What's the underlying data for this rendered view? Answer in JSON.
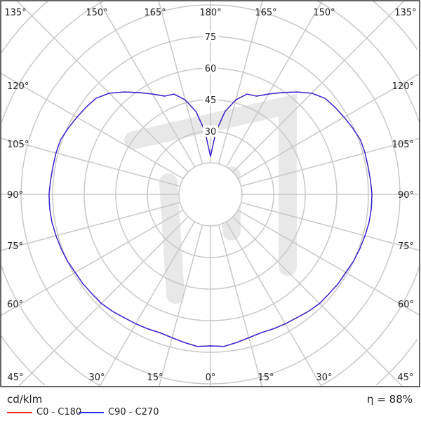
{
  "chart_data": {
    "type": "polar",
    "unit_label": "cd/klm",
    "efficiency_label": "η = 88%",
    "radial_ticks": [
      30,
      45,
      60,
      75
    ],
    "radial_grid_step": 15,
    "angle_labels": {
      "top": [
        "135°",
        "150°",
        "165°",
        "180°",
        "165°",
        "150°",
        "135°"
      ],
      "left": [
        "120°",
        "105°",
        "90°",
        "75°",
        "60°"
      ],
      "right": [
        "120°",
        "105°",
        "90°",
        "75°",
        "60°"
      ],
      "bottom": [
        "45°",
        "30°",
        "15°",
        "0°",
        "15°",
        "30°",
        "45°"
      ]
    },
    "angles": [
      0,
      5,
      10,
      15,
      20,
      25,
      30,
      35,
      40,
      45,
      50,
      55,
      60,
      65,
      70,
      75,
      80,
      85,
      90,
      95,
      100,
      105,
      110,
      115,
      120,
      125,
      130,
      135,
      140,
      145,
      150,
      155,
      160,
      165,
      170,
      175,
      180
    ],
    "series": [
      {
        "name": "C0 - C180",
        "color": "#e8232a",
        "values": [
          72,
          72.5,
          71.5,
          70.5,
          70,
          70.5,
          71,
          71.5,
          72.5,
          73.3,
          73.5,
          74,
          74.2,
          75,
          75.5,
          76,
          76.5,
          76.7,
          76.7,
          76.3,
          76,
          76,
          75.8,
          74.5,
          73.3,
          72.2,
          71,
          68,
          63.5,
          59,
          55,
          51.5,
          50.7,
          46.5,
          40,
          30,
          18
        ]
      },
      {
        "name": "C90 - C270",
        "color": "#2a2ae0",
        "values": [
          72,
          72.5,
          71.5,
          70.5,
          70,
          70.5,
          71,
          71.5,
          72.5,
          73.3,
          73.5,
          74,
          74.2,
          75,
          75.5,
          76,
          76.5,
          76.7,
          76.7,
          76.3,
          76,
          76,
          75.8,
          74.5,
          73.3,
          72.2,
          71,
          68,
          63.5,
          59,
          55,
          51.5,
          50.7,
          46.5,
          40,
          30,
          18
        ]
      }
    ],
    "grid": true,
    "legend": "bottom-left"
  }
}
